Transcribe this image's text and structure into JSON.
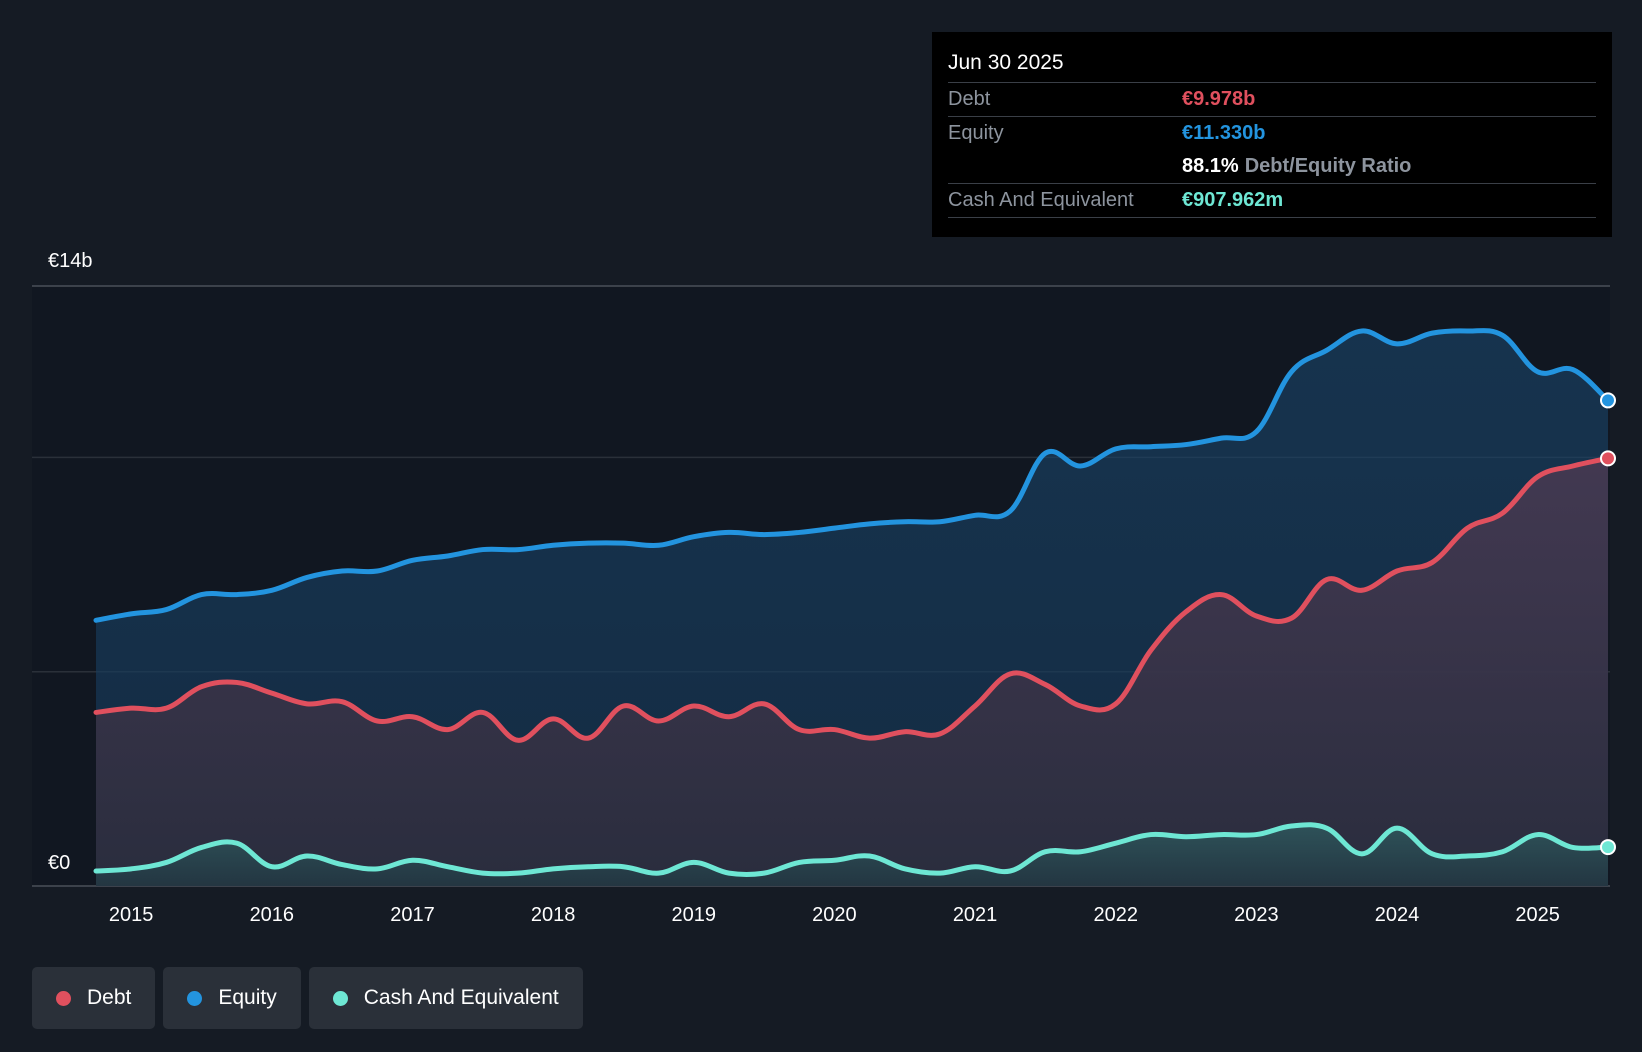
{
  "tooltip": {
    "date": "Jun 30 2025",
    "debt_label": "Debt",
    "debt_value": "€9.978b",
    "equity_label": "Equity",
    "equity_value": "€11.330b",
    "ratio_value": "88.1%",
    "ratio_label": "Debt/Equity Ratio",
    "cash_label": "Cash And Equivalent",
    "cash_value": "€907.962m"
  },
  "legend": {
    "debt": "Debt",
    "equity": "Equity",
    "cash": "Cash And Equivalent"
  },
  "colors": {
    "debt": "#e0505e",
    "equity": "#2394df",
    "cash": "#6ee7d4",
    "background": "#151b24",
    "tooltip_bg": "#000000"
  },
  "chart_data": {
    "type": "area",
    "title": "",
    "ylabel": "",
    "xlabel": "",
    "y_top_label": "€14b",
    "y_bottom_label": "€0",
    "ylim": [
      0,
      14
    ],
    "xlim": [
      2014.75,
      2025.5
    ],
    "xticks": [
      2015,
      2016,
      2017,
      2018,
      2019,
      2020,
      2021,
      2022,
      2023,
      2024,
      2025
    ],
    "xtick_labels": [
      "2015",
      "2016",
      "2017",
      "2018",
      "2019",
      "2020",
      "2021",
      "2022",
      "2023",
      "2024",
      "2025"
    ],
    "x": [
      2014.75,
      2015.0,
      2015.25,
      2015.5,
      2015.75,
      2016.0,
      2016.25,
      2016.5,
      2016.75,
      2017.0,
      2017.25,
      2017.5,
      2017.75,
      2018.0,
      2018.25,
      2018.5,
      2018.75,
      2019.0,
      2019.25,
      2019.5,
      2019.75,
      2020.0,
      2020.25,
      2020.5,
      2020.75,
      2021.0,
      2021.25,
      2021.5,
      2021.75,
      2022.0,
      2022.25,
      2022.5,
      2022.75,
      2023.0,
      2023.25,
      2023.5,
      2023.75,
      2024.0,
      2024.25,
      2024.5,
      2024.75,
      2025.0,
      2025.25,
      2025.5
    ],
    "series": [
      {
        "name": "Equity",
        "values": [
          6.2,
          6.35,
          6.45,
          6.8,
          6.8,
          6.9,
          7.2,
          7.35,
          7.35,
          7.6,
          7.7,
          7.85,
          7.85,
          7.95,
          8.0,
          8.0,
          7.95,
          8.15,
          8.25,
          8.2,
          8.25,
          8.35,
          8.45,
          8.5,
          8.5,
          8.65,
          8.75,
          10.1,
          9.8,
          10.2,
          10.25,
          10.3,
          10.45,
          10.6,
          12.0,
          12.5,
          12.95,
          12.65,
          12.9,
          12.95,
          12.85,
          12.0,
          12.05,
          11.33
        ]
      },
      {
        "name": "Debt",
        "values": [
          4.05,
          4.15,
          4.15,
          4.65,
          4.75,
          4.5,
          4.25,
          4.3,
          3.85,
          3.95,
          3.65,
          4.05,
          3.4,
          3.9,
          3.45,
          4.2,
          3.85,
          4.2,
          3.95,
          4.25,
          3.65,
          3.65,
          3.45,
          3.6,
          3.55,
          4.2,
          4.95,
          4.7,
          4.2,
          4.25,
          5.5,
          6.4,
          6.8,
          6.3,
          6.25,
          7.15,
          6.9,
          7.35,
          7.55,
          8.35,
          8.7,
          9.55,
          9.8,
          9.978
        ]
      },
      {
        "name": "Cash And Equivalent",
        "values": [
          0.35,
          0.4,
          0.55,
          0.9,
          1.0,
          0.45,
          0.7,
          0.5,
          0.4,
          0.6,
          0.45,
          0.3,
          0.3,
          0.4,
          0.45,
          0.45,
          0.3,
          0.55,
          0.3,
          0.3,
          0.55,
          0.6,
          0.7,
          0.4,
          0.3,
          0.45,
          0.35,
          0.8,
          0.8,
          1.0,
          1.2,
          1.15,
          1.2,
          1.2,
          1.4,
          1.35,
          0.75,
          1.35,
          0.75,
          0.7,
          0.8,
          1.2,
          0.9,
          0.908
        ]
      }
    ]
  }
}
